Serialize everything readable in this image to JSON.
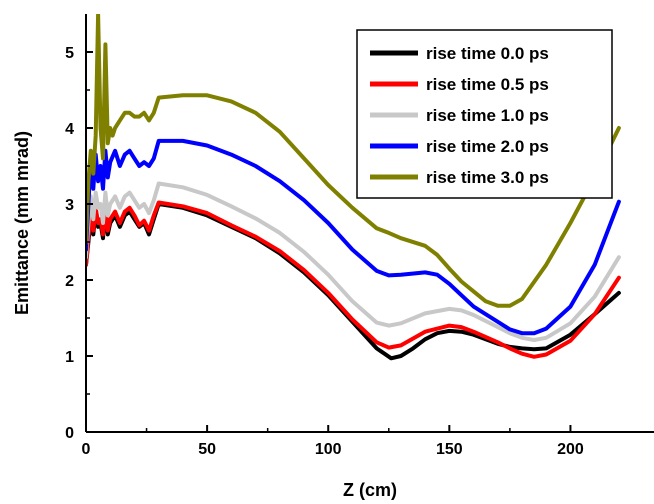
{
  "chart_data": {
    "type": "line",
    "xlabel": "Z (cm)",
    "ylabel": "Emittance (mm mrad)",
    "xlim": [
      0,
      225
    ],
    "ylim": [
      0,
      5.5
    ],
    "xticks": [
      0,
      50,
      100,
      150,
      200
    ],
    "yticks": [
      0,
      1,
      2,
      3,
      4,
      5
    ],
    "grid": false,
    "legend_position": "top-right",
    "series": [
      {
        "name": "rise time 0.0 ps",
        "color": "#000000",
        "x": [
          0,
          1,
          2,
          3,
          4,
          5,
          6,
          7,
          8,
          9,
          10,
          12,
          14,
          16,
          18,
          20,
          22,
          24,
          26,
          28,
          30,
          40,
          50,
          60,
          70,
          80,
          90,
          100,
          110,
          120,
          126,
          130,
          135,
          140,
          145,
          150,
          155,
          160,
          165,
          170,
          175,
          180,
          185,
          190,
          200,
          210,
          220
        ],
        "y": [
          2.2,
          2.5,
          2.8,
          2.6,
          2.9,
          2.7,
          2.75,
          2.55,
          2.9,
          2.6,
          2.75,
          2.85,
          2.7,
          2.85,
          2.9,
          2.8,
          2.7,
          2.75,
          2.6,
          2.8,
          3.0,
          2.95,
          2.85,
          2.7,
          2.55,
          2.35,
          2.1,
          1.8,
          1.45,
          1.1,
          0.97,
          1.0,
          1.1,
          1.22,
          1.3,
          1.33,
          1.32,
          1.28,
          1.22,
          1.16,
          1.12,
          1.1,
          1.09,
          1.1,
          1.28,
          1.55,
          1.83
        ]
      },
      {
        "name": "rise time 0.5 ps",
        "color": "#ff0000",
        "x": [
          0,
          1,
          2,
          3,
          4,
          5,
          6,
          7,
          8,
          9,
          10,
          12,
          14,
          16,
          18,
          20,
          22,
          24,
          26,
          28,
          30,
          40,
          50,
          60,
          70,
          80,
          90,
          100,
          110,
          120,
          125,
          130,
          140,
          150,
          155,
          160,
          170,
          175,
          180,
          185,
          190,
          200,
          210,
          220
        ],
        "y": [
          2.2,
          2.55,
          2.9,
          2.65,
          2.95,
          2.75,
          2.8,
          2.6,
          2.95,
          2.65,
          2.8,
          2.9,
          2.75,
          2.9,
          2.95,
          2.85,
          2.72,
          2.78,
          2.65,
          2.85,
          3.02,
          2.97,
          2.88,
          2.72,
          2.57,
          2.38,
          2.13,
          1.83,
          1.48,
          1.18,
          1.11,
          1.14,
          1.32,
          1.4,
          1.38,
          1.32,
          1.18,
          1.1,
          1.03,
          0.99,
          1.02,
          1.2,
          1.55,
          2.03
        ]
      },
      {
        "name": "rise time 1.0 ps",
        "color": "#c8c8c8",
        "x": [
          0,
          1,
          2,
          3,
          4,
          5,
          6,
          7,
          8,
          9,
          10,
          12,
          14,
          16,
          18,
          20,
          22,
          24,
          26,
          28,
          30,
          40,
          50,
          60,
          70,
          80,
          90,
          100,
          110,
          120,
          125,
          130,
          140,
          150,
          155,
          160,
          170,
          175,
          180,
          185,
          190,
          200,
          210,
          220
        ],
        "y": [
          2.3,
          2.75,
          3.1,
          2.8,
          3.15,
          2.95,
          3.0,
          2.75,
          3.15,
          2.85,
          3.0,
          3.1,
          2.95,
          3.1,
          3.15,
          3.05,
          2.95,
          3.0,
          2.88,
          3.05,
          3.27,
          3.22,
          3.12,
          2.97,
          2.81,
          2.62,
          2.37,
          2.07,
          1.72,
          1.44,
          1.4,
          1.43,
          1.56,
          1.62,
          1.6,
          1.54,
          1.38,
          1.3,
          1.24,
          1.21,
          1.24,
          1.43,
          1.78,
          2.3
        ]
      },
      {
        "name": "rise time 2.0 ps",
        "color": "#0000ff",
        "x": [
          0,
          1,
          2,
          3,
          4,
          5,
          6,
          7,
          8,
          9,
          10,
          12,
          14,
          16,
          18,
          20,
          22,
          24,
          26,
          28,
          30,
          40,
          50,
          60,
          70,
          80,
          90,
          100,
          110,
          120,
          125,
          130,
          140,
          145,
          150,
          155,
          160,
          170,
          175,
          180,
          185,
          190,
          200,
          210,
          220
        ],
        "y": [
          2.4,
          3.0,
          3.6,
          3.2,
          3.65,
          3.3,
          3.5,
          3.2,
          3.7,
          3.35,
          3.55,
          3.7,
          3.5,
          3.65,
          3.7,
          3.6,
          3.5,
          3.55,
          3.5,
          3.6,
          3.83,
          3.83,
          3.77,
          3.65,
          3.5,
          3.3,
          3.05,
          2.75,
          2.4,
          2.12,
          2.06,
          2.07,
          2.1,
          2.07,
          1.95,
          1.8,
          1.65,
          1.45,
          1.35,
          1.3,
          1.3,
          1.36,
          1.65,
          2.2,
          3.03
        ]
      },
      {
        "name": "rise time 3.0 ps",
        "color": "#808000",
        "x": [
          0,
          1,
          2,
          3,
          4,
          5,
          6,
          7,
          8,
          9,
          10,
          11,
          12,
          14,
          16,
          18,
          20,
          22,
          24,
          26,
          28,
          30,
          40,
          50,
          60,
          70,
          80,
          90,
          100,
          110,
          120,
          125,
          130,
          140,
          145,
          150,
          155,
          160,
          165,
          170,
          175,
          180,
          190,
          200,
          210,
          220
        ],
        "y": [
          2.5,
          3.3,
          3.7,
          3.4,
          3.9,
          5.5,
          4.0,
          3.6,
          5.1,
          3.8,
          4.0,
          3.9,
          4.0,
          4.1,
          4.2,
          4.2,
          4.15,
          4.15,
          4.2,
          4.1,
          4.2,
          4.4,
          4.43,
          4.43,
          4.35,
          4.2,
          3.95,
          3.6,
          3.25,
          2.95,
          2.68,
          2.62,
          2.55,
          2.45,
          2.33,
          2.15,
          1.98,
          1.85,
          1.72,
          1.66,
          1.66,
          1.75,
          2.2,
          2.75,
          3.35,
          4.0
        ]
      }
    ]
  }
}
